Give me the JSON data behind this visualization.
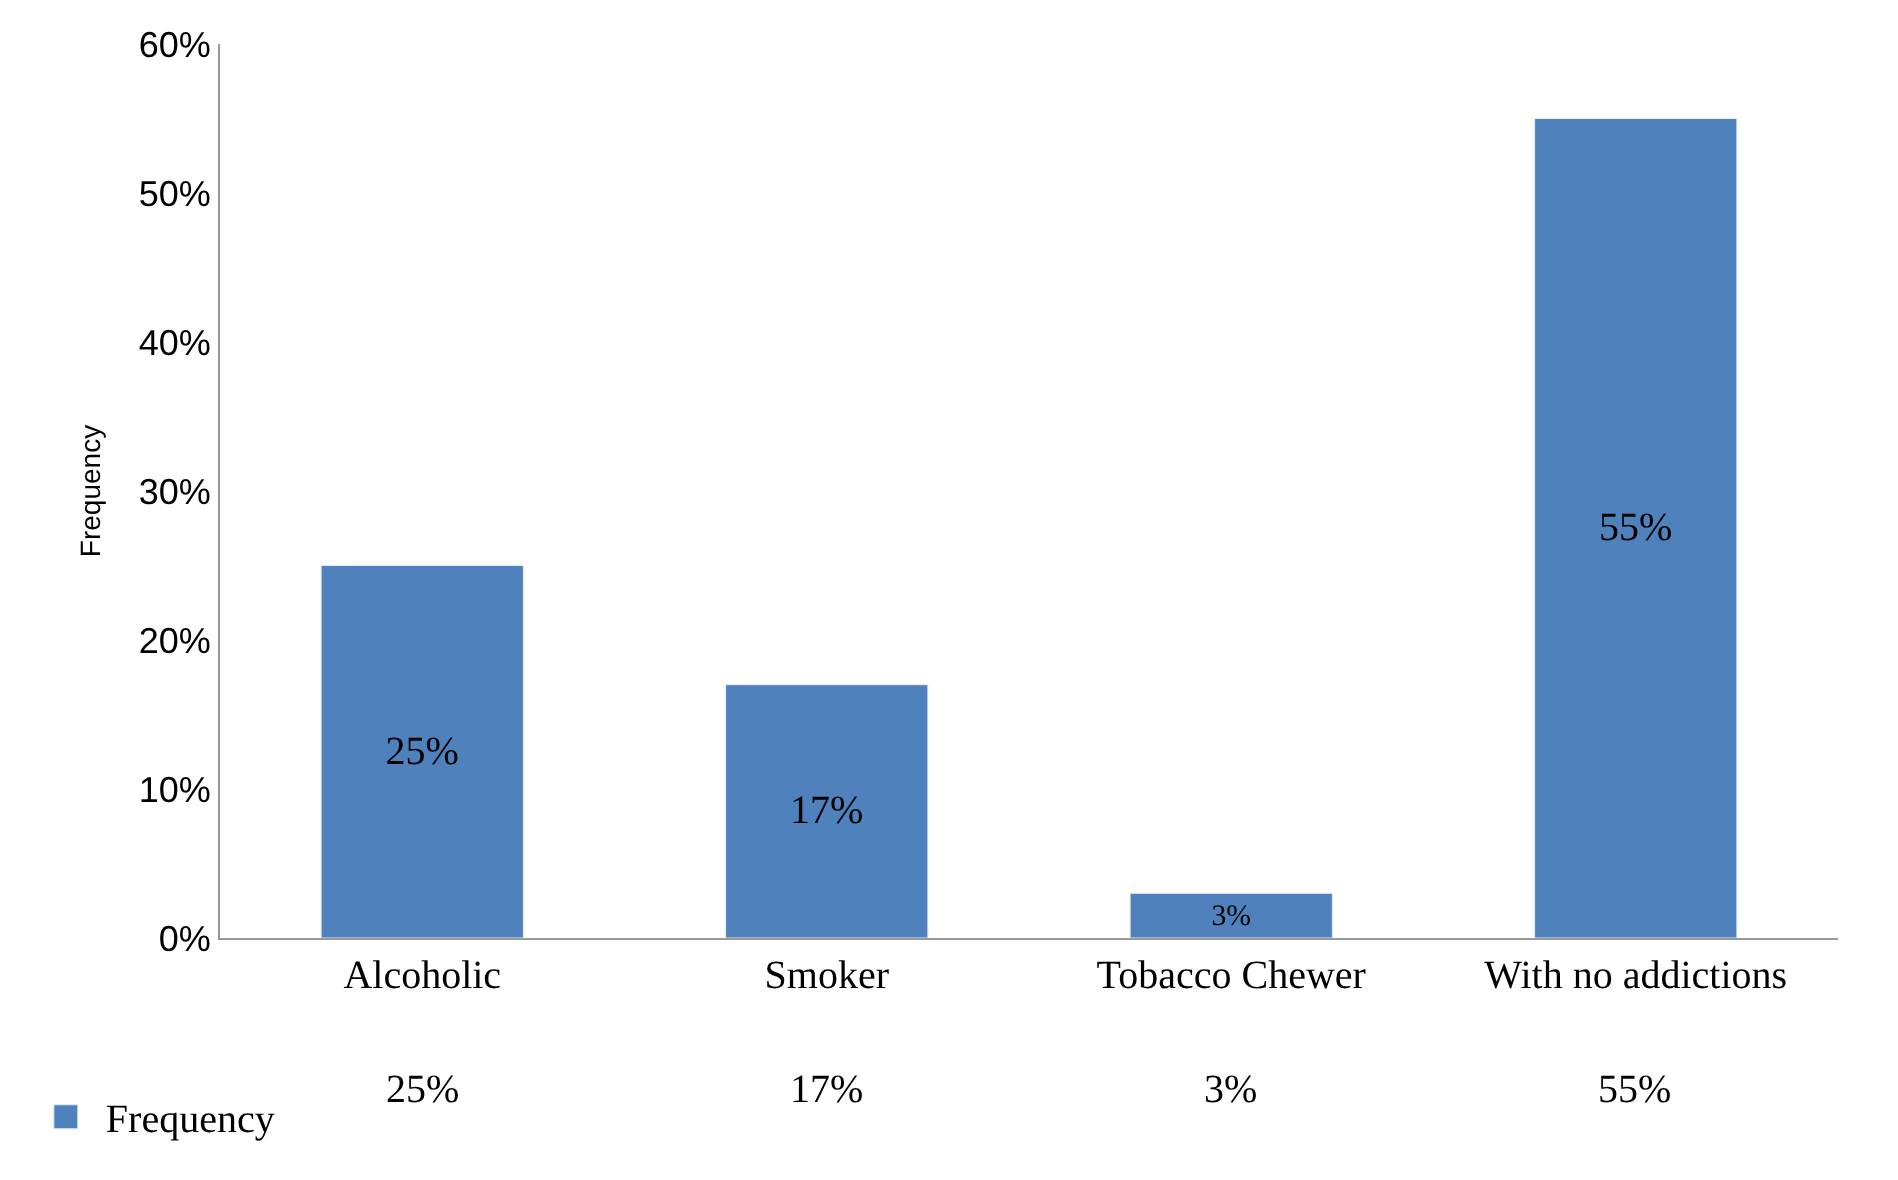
{
  "chart_data": {
    "type": "bar",
    "ylabel": "Frequency",
    "categories": [
      "Alcoholic",
      "Smoker",
      "Tobacco Chewer",
      "With no addictions"
    ],
    "series": [
      {
        "name": "Frequency",
        "color": "#4f81bd",
        "values": [
          25,
          17,
          3,
          55
        ],
        "value_labels": [
          "25%",
          "17%",
          "3%",
          "55%"
        ]
      }
    ],
    "ylim": [
      0,
      60
    ],
    "yticks": [
      {
        "value": 0,
        "label": "0%"
      },
      {
        "value": 10,
        "label": "10%"
      },
      {
        "value": 20,
        "label": "20%"
      },
      {
        "value": 30,
        "label": "30%"
      },
      {
        "value": 40,
        "label": "40%"
      },
      {
        "value": 50,
        "label": "50%"
      },
      {
        "value": 60,
        "label": "60%"
      }
    ],
    "grid": false,
    "legend": "bottom left"
  }
}
